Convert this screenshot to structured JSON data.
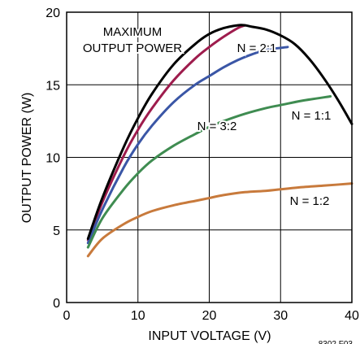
{
  "chart_data": {
    "type": "line",
    "xlabel": "INPUT VOLTAGE (V)",
    "ylabel": "OUTPUT POWER (W)",
    "xlim": [
      0,
      40
    ],
    "ylim": [
      0,
      20
    ],
    "xticks": [
      0,
      10,
      20,
      30,
      40
    ],
    "yticks": [
      0,
      5,
      10,
      15,
      20
    ],
    "grid": true,
    "legend": "none",
    "figure_id": "8302 F03",
    "series": [
      {
        "name": "MAXIMUM OUTPUT POWER",
        "color": "#000000",
        "x": [
          3,
          5,
          8,
          10,
          12,
          15,
          18,
          20,
          22,
          24,
          25,
          26,
          28,
          30,
          32,
          34,
          36,
          38,
          40
        ],
        "y": [
          4.4,
          7.2,
          10.7,
          12.7,
          14.4,
          16.4,
          17.8,
          18.5,
          18.9,
          19.1,
          19.1,
          19.0,
          18.8,
          18.4,
          17.8,
          16.8,
          15.5,
          14.0,
          12.3
        ]
      },
      {
        "name": "N = 2:1",
        "color": "#9e1c4d",
        "x": [
          3,
          5,
          8,
          10,
          12,
          15,
          18,
          20,
          22,
          24,
          25
        ],
        "y": [
          4.3,
          6.9,
          10.1,
          11.9,
          13.4,
          15.3,
          16.8,
          17.6,
          18.3,
          18.9,
          19.1
        ]
      },
      {
        "name": "N = 3:2",
        "color": "#3a56a6",
        "x": [
          3,
          5,
          8,
          10,
          12,
          15,
          18,
          20,
          22,
          24,
          26,
          28,
          31
        ],
        "y": [
          4.1,
          6.4,
          9.3,
          10.9,
          12.2,
          13.8,
          15.0,
          15.6,
          16.2,
          16.7,
          17.1,
          17.4,
          17.6
        ]
      },
      {
        "name": "N = 1:1",
        "color": "#3f8c51",
        "x": [
          3,
          5,
          8,
          10,
          12,
          15,
          18,
          20,
          22,
          25,
          28,
          30,
          33,
          37
        ],
        "y": [
          3.8,
          5.8,
          7.8,
          8.9,
          9.8,
          10.8,
          11.6,
          12.1,
          12.5,
          13.0,
          13.4,
          13.6,
          13.9,
          14.2
        ]
      },
      {
        "name": "N = 1:2",
        "color": "#c87a3c",
        "x": [
          3,
          5,
          8,
          10,
          12,
          15,
          18,
          20,
          22,
          25,
          28,
          30,
          33,
          36,
          40
        ],
        "y": [
          3.2,
          4.4,
          5.4,
          5.9,
          6.3,
          6.7,
          7.0,
          7.2,
          7.4,
          7.6,
          7.7,
          7.8,
          7.95,
          8.05,
          8.2
        ]
      }
    ]
  }
}
